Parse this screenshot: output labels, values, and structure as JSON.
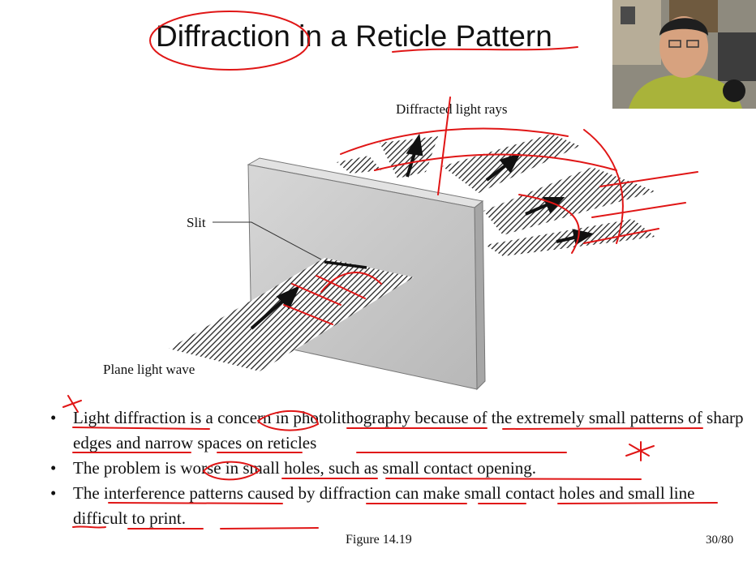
{
  "slide": {
    "title": "Diffraction in a Reticle Pattern",
    "figure_labels": {
      "diffracted": "Diffracted light rays",
      "slit": "Slit",
      "plane": "Plane light wave"
    },
    "bullets": [
      "Light diffraction is a concern in photolithography because of the extremely small patterns of sharp edges and narrow spaces on reticles",
      "The problem is worse in small holes, such as small contact opening.",
      "The interference patterns caused by diffraction can make small contact holes and small line difficult to print."
    ],
    "caption": "Figure 14.19",
    "page_number": "30/80"
  },
  "colors": {
    "ink": "#e01616",
    "plate_front": "#c9c9c9",
    "plate_side": "#9e9e9e",
    "hatch": "#222222"
  },
  "icons": [
    "webcam-presenter-thumbnail"
  ]
}
